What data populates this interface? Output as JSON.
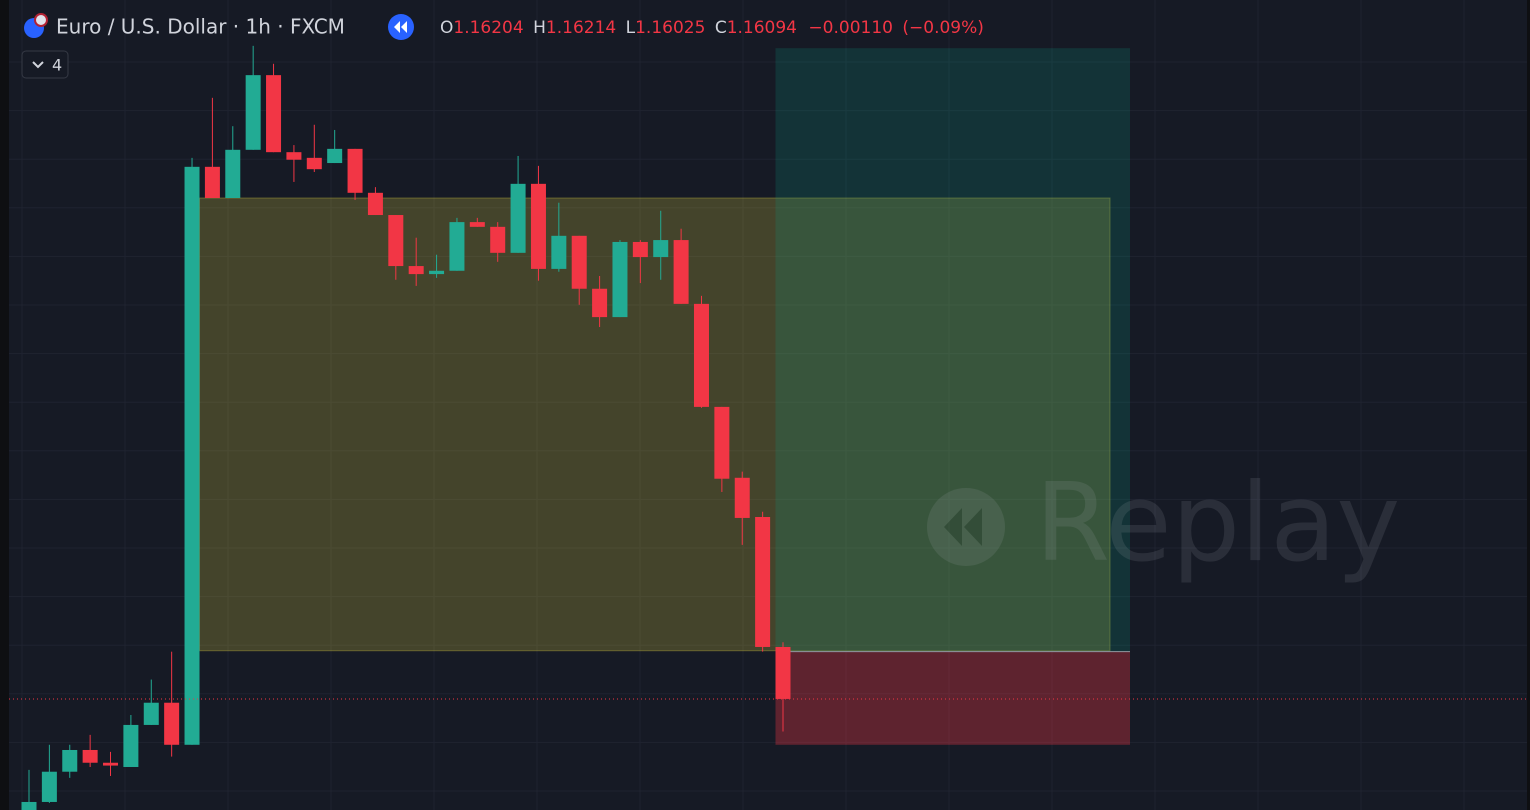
{
  "chart_data": {
    "type": "candlestick",
    "title": "Euro / U.S. Dollar · 1h · FXCM",
    "legend_labels": [
      "O",
      "H",
      "L",
      "C"
    ],
    "change": {
      "value": -0.0011,
      "label": "−0.00110"
    },
    "change_percent": {
      "value": -0.09,
      "label": "(−0.09%)"
    },
    "indicator_count": "4",
    "watermark": "Replay",
    "up_color": "#22ab94",
    "down_color": "#f23645",
    "ylim": [
      1.15859,
      1.17573
    ],
    "grid": true,
    "open": [
      1.15859,
      1.15876,
      1.1594,
      1.15986,
      1.15959,
      1.1595,
      1.16039,
      1.16086,
      1.15997,
      1.1722,
      1.17154,
      1.17256,
      1.17414,
      1.17251,
      1.17239,
      1.17228,
      1.17258,
      1.17165,
      1.17118,
      1.1701,
      1.16993,
      1.17,
      1.17103,
      1.17093,
      1.17038,
      1.17184,
      1.17004,
      1.17074,
      1.16962,
      1.16902,
      1.17061,
      1.17029,
      1.17065,
      1.1693,
      1.16712,
      1.16562,
      1.16479,
      1.16204
    ],
    "high": [
      1.15944,
      1.15997,
      1.15997,
      1.16018,
      1.15982,
      1.1606,
      1.16135,
      1.16194,
      1.17239,
      1.17366,
      1.17306,
      1.17476,
      1.17438,
      1.17266,
      1.17309,
      1.17298,
      1.17258,
      1.17177,
      1.17118,
      1.1707,
      1.17034,
      1.17112,
      1.17112,
      1.17103,
      1.17243,
      1.17222,
      1.17144,
      1.17074,
      1.16989,
      1.17065,
      1.17065,
      1.17127,
      1.17089,
      1.16947,
      1.16712,
      1.16575,
      1.1649,
      1.16214
    ],
    "low": [
      1.15859,
      1.15874,
      1.15927,
      1.1595,
      1.15931,
      1.1595,
      1.16039,
      1.15972,
      1.15997,
      1.17154,
      1.17154,
      1.17256,
      1.17251,
      1.17188,
      1.17209,
      1.17228,
      1.1715,
      1.17118,
      1.16981,
      1.16968,
      1.16985,
      1.17,
      1.17093,
      1.17019,
      1.17038,
      1.16979,
      1.16998,
      1.16928,
      1.16881,
      1.16902,
      1.16974,
      1.16981,
      1.1693,
      1.1671,
      1.16532,
      1.1642,
      1.16194,
      1.16025
    ],
    "close": [
      1.15876,
      1.1594,
      1.15986,
      1.15959,
      1.15953,
      1.16039,
      1.16086,
      1.15997,
      1.1722,
      1.17154,
      1.17256,
      1.17414,
      1.17251,
      1.17235,
      1.17215,
      1.17258,
      1.17165,
      1.17118,
      1.1701,
      1.16993,
      1.17,
      1.17103,
      1.17093,
      1.17038,
      1.17184,
      1.17004,
      1.17074,
      1.16962,
      1.16902,
      1.17061,
      1.17029,
      1.17065,
      1.1693,
      1.16712,
      1.1656,
      1.16477,
      1.16204,
      1.16094
    ],
    "position": {
      "entry": 1.16194,
      "target": 1.17471,
      "stop": 1.15997
    },
    "rectangle": {
      "top": 1.17154,
      "bottom": 1.16196
    }
  }
}
